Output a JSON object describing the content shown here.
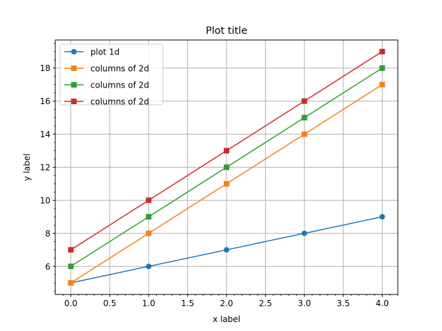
{
  "chart_data": {
    "type": "line",
    "title": "Plot title",
    "xlabel": "x label",
    "ylabel": "y label",
    "x": [
      0,
      1,
      2,
      3,
      4
    ],
    "xlim": [
      -0.2,
      4.2
    ],
    "ylim": [
      4.3,
      19.7
    ],
    "xticks": [
      0,
      0.5,
      1,
      1.5,
      2,
      2.5,
      3,
      3.5,
      4
    ],
    "xtick_labels": [
      "0.0",
      "0.5",
      "1.0",
      "1.5",
      "2.0",
      "2.5",
      "3.0",
      "3.5",
      "4.0"
    ],
    "yticks": [
      6,
      8,
      10,
      12,
      14,
      16,
      18
    ],
    "ytick_labels": [
      "6",
      "8",
      "10",
      "12",
      "14",
      "16",
      "18"
    ],
    "grid": true,
    "minor_ticks": true,
    "legend_position": "top-left",
    "series": [
      {
        "name": "plot 1d",
        "values": [
          5,
          6,
          7,
          8,
          9
        ],
        "color": "#1f77b4",
        "marker": "circle"
      },
      {
        "name": "columns of 2d",
        "values": [
          5,
          8,
          11,
          14,
          17
        ],
        "color": "#ff7f0e",
        "marker": "square"
      },
      {
        "name": "columns of 2d",
        "values": [
          6,
          9,
          12,
          15,
          18
        ],
        "color": "#2ca02c",
        "marker": "square"
      },
      {
        "name": "columns of 2d",
        "values": [
          7,
          10,
          13,
          16,
          19
        ],
        "color": "#d62728",
        "marker": "square"
      }
    ]
  }
}
